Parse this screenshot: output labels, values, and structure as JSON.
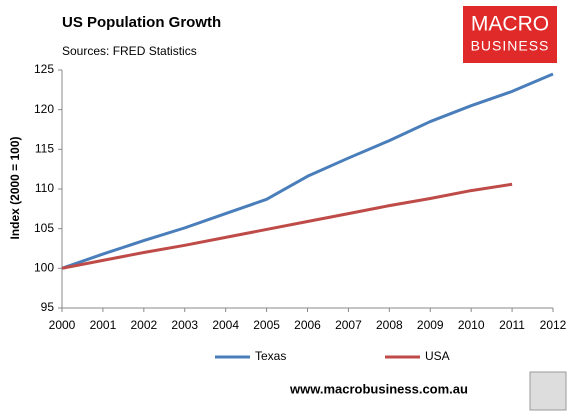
{
  "chart_data": {
    "type": "line",
    "title": "US Population Growth",
    "subtitle": "Sources: FRED Statistics",
    "y_label": "Index (2000 = 100)",
    "logo": {
      "line1": "MACRO",
      "line2": "BUSINESS"
    },
    "footer": "www.macrobusiness.com.au",
    "x": [
      2000,
      2001,
      2002,
      2003,
      2004,
      2005,
      2006,
      2007,
      2008,
      2009,
      2010,
      2011,
      2012
    ],
    "xlim": [
      2000,
      2012
    ],
    "xticks": [
      2000,
      2001,
      2002,
      2003,
      2004,
      2005,
      2006,
      2007,
      2008,
      2009,
      2010,
      2011,
      2012
    ],
    "ylim": [
      95,
      125
    ],
    "yticks": [
      95,
      100,
      105,
      110,
      115,
      120,
      125
    ],
    "grid": false,
    "legend": "bottom",
    "series": [
      {
        "name": "Texas",
        "color": "#4a7ebb",
        "values": [
          100,
          101.8,
          103.5,
          105.1,
          106.9,
          108.7,
          111.6,
          113.9,
          116.1,
          118.5,
          120.5,
          122.3,
          124.5
        ]
      },
      {
        "name": "USA",
        "color": "#be4b48",
        "values": [
          100,
          101.0,
          102.0,
          102.9,
          103.9,
          104.9,
          105.9,
          106.9,
          107.9,
          108.8,
          109.8,
          110.6,
          null
        ]
      }
    ]
  }
}
